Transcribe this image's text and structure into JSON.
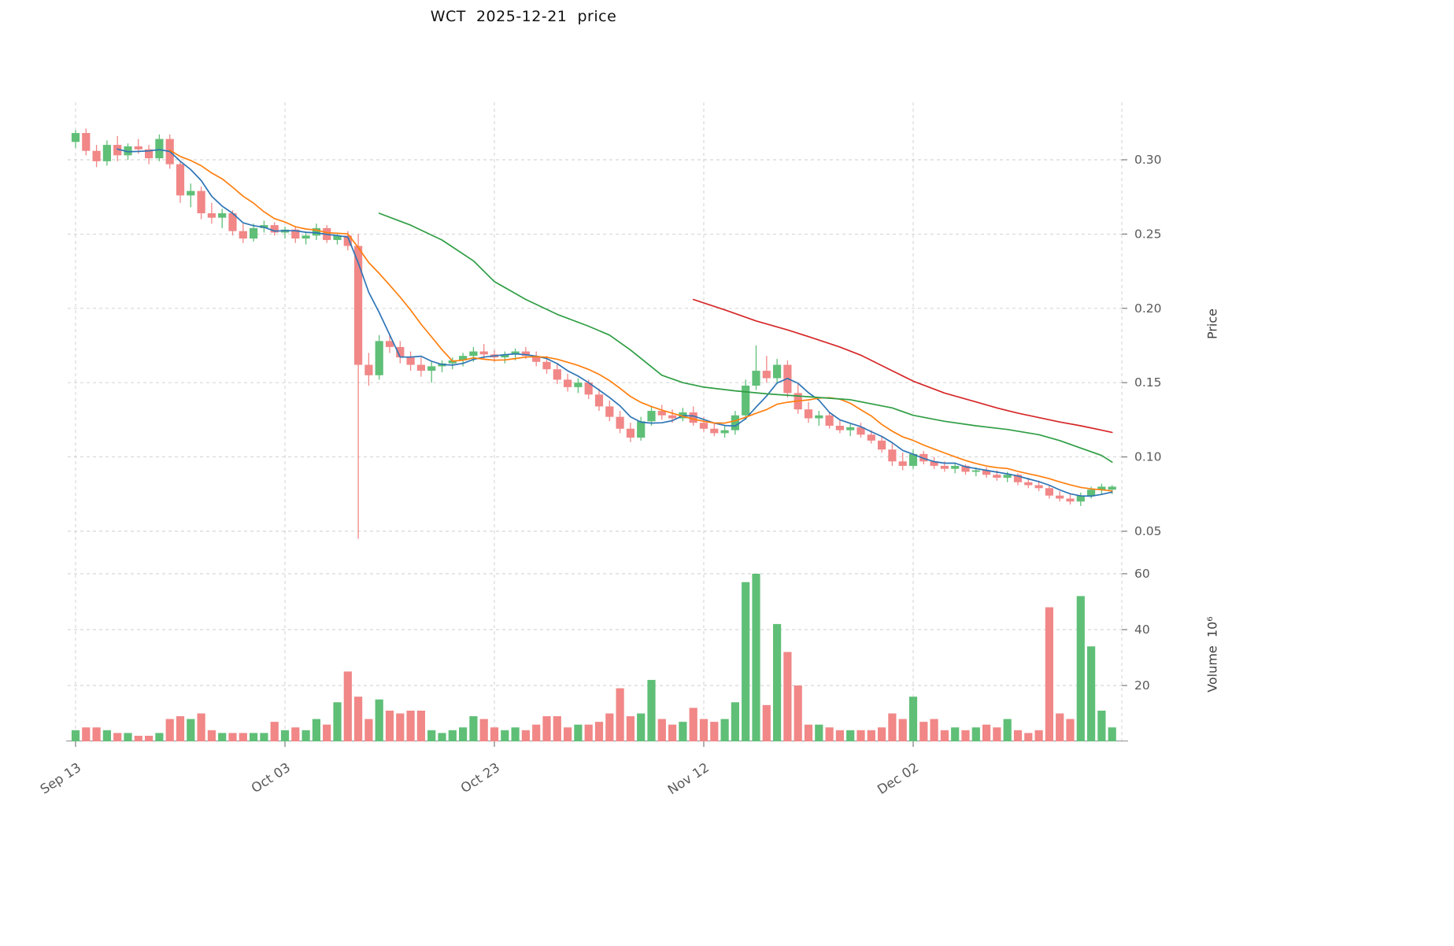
{
  "title": "WCT  2025-12-21  price",
  "chart_data": {
    "type": "candlestick",
    "title": "WCT  2025-12-21  price",
    "frequency": "daily",
    "start_date": "2025-09-13",
    "end_date": "2025-12-21",
    "price_axis": {
      "label": "Price",
      "ticks": [
        0.05,
        0.1,
        0.15,
        0.2,
        0.25,
        0.3
      ],
      "range": [
        0.042,
        0.339
      ]
    },
    "volume_axis": {
      "label": "Volume  10⁶",
      "ticks": [
        20,
        40,
        60
      ],
      "range": [
        0,
        68
      ],
      "unit": "millions"
    },
    "x_axis": {
      "ticks": [
        {
          "index": 0,
          "label": "Sep 13"
        },
        {
          "index": 20,
          "label": "Oct 03"
        },
        {
          "index": 40,
          "label": "Oct 23"
        },
        {
          "index": 60,
          "label": "Nov 12"
        },
        {
          "index": 80,
          "label": "Dec 02"
        }
      ]
    },
    "candle_format": [
      "open",
      "high",
      "low",
      "close",
      "volume_millions"
    ],
    "candles": [
      [
        0.312,
        0.32,
        0.308,
        0.318,
        4
      ],
      [
        0.318,
        0.321,
        0.303,
        0.306,
        5
      ],
      [
        0.306,
        0.31,
        0.295,
        0.299,
        5
      ],
      [
        0.299,
        0.313,
        0.296,
        0.31,
        4
      ],
      [
        0.31,
        0.316,
        0.299,
        0.303,
        3
      ],
      [
        0.303,
        0.311,
        0.3,
        0.309,
        3
      ],
      [
        0.309,
        0.314,
        0.304,
        0.307,
        2
      ],
      [
        0.307,
        0.31,
        0.297,
        0.301,
        2
      ],
      [
        0.301,
        0.317,
        0.299,
        0.314,
        3
      ],
      [
        0.314,
        0.317,
        0.294,
        0.297,
        8
      ],
      [
        0.297,
        0.299,
        0.271,
        0.276,
        9
      ],
      [
        0.276,
        0.284,
        0.268,
        0.279,
        8
      ],
      [
        0.279,
        0.282,
        0.26,
        0.264,
        10
      ],
      [
        0.264,
        0.271,
        0.257,
        0.261,
        4
      ],
      [
        0.261,
        0.267,
        0.254,
        0.264,
        3
      ],
      [
        0.264,
        0.266,
        0.249,
        0.252,
        3
      ],
      [
        0.252,
        0.257,
        0.244,
        0.247,
        3
      ],
      [
        0.247,
        0.257,
        0.245,
        0.254,
        3
      ],
      [
        0.254,
        0.259,
        0.251,
        0.256,
        3
      ],
      [
        0.256,
        0.258,
        0.249,
        0.251,
        7
      ],
      [
        0.251,
        0.255,
        0.247,
        0.253,
        4
      ],
      [
        0.253,
        0.255,
        0.244,
        0.247,
        5
      ],
      [
        0.247,
        0.251,
        0.243,
        0.249,
        4
      ],
      [
        0.249,
        0.257,
        0.246,
        0.254,
        8
      ],
      [
        0.254,
        0.256,
        0.244,
        0.246,
        6
      ],
      [
        0.246,
        0.251,
        0.243,
        0.249,
        14
      ],
      [
        0.249,
        0.252,
        0.239,
        0.242,
        25
      ],
      [
        0.242,
        0.25,
        0.045,
        0.162,
        16
      ],
      [
        0.162,
        0.17,
        0.148,
        0.155,
        8
      ],
      [
        0.155,
        0.182,
        0.152,
        0.178,
        15
      ],
      [
        0.178,
        0.183,
        0.17,
        0.174,
        11
      ],
      [
        0.174,
        0.178,
        0.163,
        0.167,
        10
      ],
      [
        0.167,
        0.171,
        0.158,
        0.162,
        11
      ],
      [
        0.162,
        0.167,
        0.154,
        0.158,
        11
      ],
      [
        0.158,
        0.164,
        0.15,
        0.161,
        4
      ],
      [
        0.161,
        0.165,
        0.157,
        0.163,
        3
      ],
      [
        0.163,
        0.167,
        0.159,
        0.165,
        4
      ],
      [
        0.165,
        0.17,
        0.161,
        0.168,
        5
      ],
      [
        0.168,
        0.174,
        0.164,
        0.171,
        9
      ],
      [
        0.171,
        0.176,
        0.166,
        0.169,
        8
      ],
      [
        0.169,
        0.172,
        0.164,
        0.167,
        5
      ],
      [
        0.167,
        0.171,
        0.163,
        0.169,
        4
      ],
      [
        0.169,
        0.173,
        0.165,
        0.171,
        5
      ],
      [
        0.171,
        0.174,
        0.166,
        0.168,
        4
      ],
      [
        0.168,
        0.171,
        0.161,
        0.164,
        6
      ],
      [
        0.164,
        0.168,
        0.156,
        0.159,
        9
      ],
      [
        0.159,
        0.163,
        0.149,
        0.152,
        9
      ],
      [
        0.152,
        0.156,
        0.144,
        0.147,
        5
      ],
      [
        0.147,
        0.153,
        0.143,
        0.15,
        6
      ],
      [
        0.15,
        0.152,
        0.139,
        0.142,
        6
      ],
      [
        0.142,
        0.146,
        0.131,
        0.134,
        7
      ],
      [
        0.134,
        0.138,
        0.124,
        0.127,
        10
      ],
      [
        0.127,
        0.131,
        0.116,
        0.119,
        19
      ],
      [
        0.119,
        0.123,
        0.11,
        0.113,
        9
      ],
      [
        0.113,
        0.127,
        0.111,
        0.124,
        10
      ],
      [
        0.124,
        0.134,
        0.121,
        0.131,
        22
      ],
      [
        0.131,
        0.135,
        0.125,
        0.128,
        8
      ],
      [
        0.128,
        0.132,
        0.123,
        0.126,
        6
      ],
      [
        0.126,
        0.133,
        0.124,
        0.13,
        7
      ],
      [
        0.13,
        0.134,
        0.121,
        0.123,
        12
      ],
      [
        0.123,
        0.127,
        0.117,
        0.119,
        8
      ],
      [
        0.119,
        0.123,
        0.114,
        0.116,
        7
      ],
      [
        0.116,
        0.121,
        0.113,
        0.118,
        8
      ],
      [
        0.118,
        0.131,
        0.115,
        0.128,
        14
      ],
      [
        0.128,
        0.152,
        0.125,
        0.148,
        57
      ],
      [
        0.148,
        0.175,
        0.145,
        0.158,
        60
      ],
      [
        0.158,
        0.168,
        0.15,
        0.153,
        13
      ],
      [
        0.153,
        0.166,
        0.149,
        0.162,
        42
      ],
      [
        0.162,
        0.165,
        0.14,
        0.143,
        32
      ],
      [
        0.143,
        0.149,
        0.129,
        0.132,
        20
      ],
      [
        0.132,
        0.137,
        0.123,
        0.126,
        6
      ],
      [
        0.126,
        0.131,
        0.121,
        0.128,
        6
      ],
      [
        0.128,
        0.13,
        0.119,
        0.121,
        5
      ],
      [
        0.121,
        0.125,
        0.116,
        0.118,
        4
      ],
      [
        0.118,
        0.122,
        0.114,
        0.12,
        4
      ],
      [
        0.12,
        0.123,
        0.113,
        0.115,
        4
      ],
      [
        0.115,
        0.118,
        0.109,
        0.111,
        4
      ],
      [
        0.111,
        0.114,
        0.103,
        0.105,
        5
      ],
      [
        0.105,
        0.109,
        0.094,
        0.097,
        10
      ],
      [
        0.097,
        0.103,
        0.091,
        0.094,
        8
      ],
      [
        0.094,
        0.105,
        0.092,
        0.102,
        16
      ],
      [
        0.102,
        0.104,
        0.095,
        0.097,
        7
      ],
      [
        0.097,
        0.1,
        0.092,
        0.094,
        8
      ],
      [
        0.094,
        0.097,
        0.09,
        0.092,
        4
      ],
      [
        0.092,
        0.096,
        0.089,
        0.094,
        5
      ],
      [
        0.094,
        0.095,
        0.088,
        0.09,
        4
      ],
      [
        0.09,
        0.093,
        0.087,
        0.091,
        5
      ],
      [
        0.091,
        0.093,
        0.086,
        0.088,
        6
      ],
      [
        0.088,
        0.091,
        0.084,
        0.086,
        5
      ],
      [
        0.086,
        0.09,
        0.083,
        0.088,
        8
      ],
      [
        0.088,
        0.089,
        0.081,
        0.083,
        4
      ],
      [
        0.083,
        0.086,
        0.079,
        0.081,
        3
      ],
      [
        0.081,
        0.084,
        0.077,
        0.079,
        4
      ],
      [
        0.079,
        0.081,
        0.072,
        0.074,
        48
      ],
      [
        0.074,
        0.077,
        0.07,
        0.072,
        10
      ],
      [
        0.072,
        0.075,
        0.068,
        0.07,
        8
      ],
      [
        0.07,
        0.076,
        0.067,
        0.074,
        52
      ],
      [
        0.074,
        0.08,
        0.072,
        0.078,
        34
      ],
      [
        0.078,
        0.082,
        0.075,
        0.08,
        11
      ],
      [
        0.078,
        0.081,
        0.075,
        0.08,
        5
      ]
    ],
    "overlays": [
      {
        "name": "sma-fast",
        "type": "sma",
        "window": 5,
        "color": "#2e75b6"
      },
      {
        "name": "sma-mid",
        "type": "sma",
        "window": 10,
        "color": "#ff7f0e"
      },
      {
        "name": "sma-slow",
        "type": "line",
        "color": "#2f9e44",
        "points": [
          [
            29,
            0.264
          ],
          [
            32,
            0.256
          ],
          [
            35,
            0.246
          ],
          [
            38,
            0.232
          ],
          [
            40,
            0.218
          ],
          [
            43,
            0.206
          ],
          [
            46,
            0.196
          ],
          [
            49,
            0.188
          ],
          [
            51,
            0.182
          ],
          [
            53,
            0.172
          ],
          [
            56,
            0.155
          ],
          [
            58,
            0.15
          ],
          [
            60,
            0.147
          ],
          [
            63,
            0.1445
          ],
          [
            66,
            0.1425
          ],
          [
            70,
            0.1405
          ],
          [
            74,
            0.1385
          ],
          [
            78,
            0.133
          ],
          [
            80,
            0.128
          ],
          [
            83,
            0.124
          ],
          [
            86,
            0.121
          ],
          [
            89,
            0.1185
          ],
          [
            92,
            0.115
          ],
          [
            94,
            0.111
          ],
          [
            96,
            0.106
          ],
          [
            98,
            0.101
          ],
          [
            99,
            0.0965
          ]
        ]
      },
      {
        "name": "sma-long",
        "type": "line",
        "color": "#d62728",
        "points": [
          [
            59,
            0.206
          ],
          [
            62,
            0.199
          ],
          [
            65,
            0.1915
          ],
          [
            68,
            0.1855
          ],
          [
            70,
            0.181
          ],
          [
            73,
            0.174
          ],
          [
            75,
            0.1685
          ],
          [
            78,
            0.158
          ],
          [
            80,
            0.151
          ],
          [
            83,
            0.143
          ],
          [
            86,
            0.137
          ],
          [
            88,
            0.133
          ],
          [
            90,
            0.1295
          ],
          [
            92,
            0.1265
          ],
          [
            94,
            0.1235
          ],
          [
            96,
            0.121
          ],
          [
            98,
            0.118
          ],
          [
            99,
            0.1165
          ]
        ]
      }
    ],
    "colors": {
      "up": "#5fbf77",
      "down": "#f18787",
      "grid": "#cdcdcd",
      "tick_text": "#595959",
      "axis_text": "#3f3f3f",
      "spine": "#8f8f8f"
    }
  }
}
